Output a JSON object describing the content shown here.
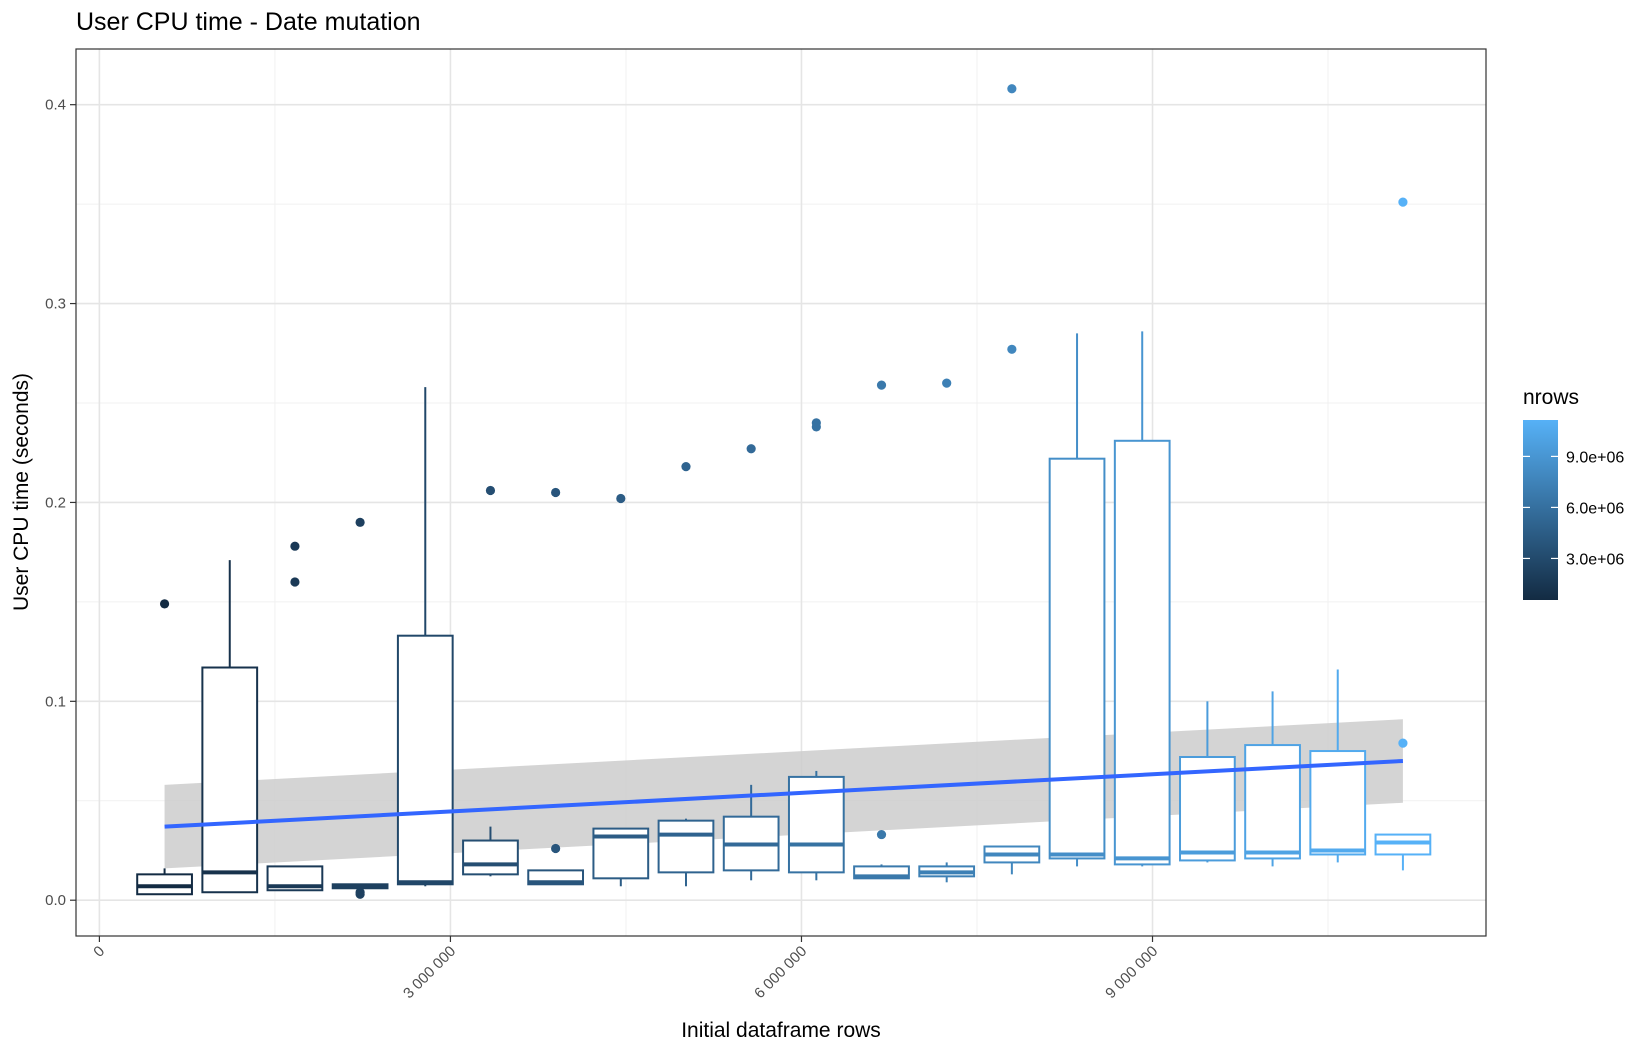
{
  "chart_data": {
    "type": "boxplot",
    "title": "User CPU time - Date mutation",
    "xlabel": "Initial dataframe rows",
    "ylabel": "User CPU time (seconds)",
    "xlim": [
      -200000,
      11850000
    ],
    "ylim": [
      -0.018,
      0.428
    ],
    "x_ticks": [
      {
        "value": 0,
        "label": "0"
      },
      {
        "value": 3000000,
        "label": "3 000 000"
      },
      {
        "value": 6000000,
        "label": "6 000 000"
      },
      {
        "value": 9000000,
        "label": "9 000 000"
      }
    ],
    "y_ticks": [
      {
        "value": 0.0,
        "label": "0.0"
      },
      {
        "value": 0.1,
        "label": "0.1"
      },
      {
        "value": 0.2,
        "label": "0.2"
      },
      {
        "value": 0.3,
        "label": "0.3"
      },
      {
        "value": 0.4,
        "label": "0.4"
      }
    ],
    "grid": true,
    "legend": {
      "title": "nrows",
      "position": "right",
      "low_color": "#132B43",
      "high_color": "#56B1F7",
      "range": [
        557000,
        11140000
      ],
      "ticks": [
        {
          "value": 3000000,
          "label": "3.0e+06"
        },
        {
          "value": 6000000,
          "label": "6.0e+06"
        },
        {
          "value": 9000000,
          "label": "9.0e+06"
        }
      ]
    },
    "boxes": [
      {
        "x": 557000,
        "min": 0.003,
        "q1": 0.003,
        "median": 0.007,
        "q3": 0.013,
        "max": 0.016,
        "outliers": [
          0.149
        ]
      },
      {
        "x": 1114000,
        "min": 0.004,
        "q1": 0.004,
        "median": 0.014,
        "q3": 0.117,
        "max": 0.171,
        "outliers": []
      },
      {
        "x": 1671000,
        "min": 0.005,
        "q1": 0.005,
        "median": 0.007,
        "q3": 0.017,
        "max": 0.017,
        "outliers": [
          0.16,
          0.178
        ]
      },
      {
        "x": 2228000,
        "min": 0.006,
        "q1": 0.006,
        "median": 0.007,
        "q3": 0.008,
        "max": 0.008,
        "outliers": [
          0.003,
          0.004,
          0.19
        ]
      },
      {
        "x": 2785000,
        "min": 0.007,
        "q1": 0.008,
        "median": 0.009,
        "q3": 0.133,
        "max": 0.258,
        "outliers": []
      },
      {
        "x": 3342000,
        "min": 0.012,
        "q1": 0.013,
        "median": 0.018,
        "q3": 0.03,
        "max": 0.037,
        "outliers": [
          0.206
        ]
      },
      {
        "x": 3899000,
        "min": 0.008,
        "q1": 0.008,
        "median": 0.009,
        "q3": 0.015,
        "max": 0.015,
        "outliers": [
          0.026,
          0.205
        ]
      },
      {
        "x": 4456000,
        "min": 0.007,
        "q1": 0.011,
        "median": 0.032,
        "q3": 0.036,
        "max": 0.036,
        "outliers": [
          0.202
        ]
      },
      {
        "x": 5013000,
        "min": 0.007,
        "q1": 0.014,
        "median": 0.033,
        "q3": 0.04,
        "max": 0.041,
        "outliers": [
          0.218
        ]
      },
      {
        "x": 5570000,
        "min": 0.01,
        "q1": 0.015,
        "median": 0.028,
        "q3": 0.042,
        "max": 0.058,
        "outliers": [
          0.227
        ]
      },
      {
        "x": 6127000,
        "min": 0.01,
        "q1": 0.014,
        "median": 0.028,
        "q3": 0.062,
        "max": 0.065,
        "outliers": [
          0.238,
          0.24
        ]
      },
      {
        "x": 6684000,
        "min": 0.011,
        "q1": 0.011,
        "median": 0.012,
        "q3": 0.017,
        "max": 0.018,
        "outliers": [
          0.033,
          0.259
        ]
      },
      {
        "x": 7241000,
        "min": 0.009,
        "q1": 0.012,
        "median": 0.014,
        "q3": 0.017,
        "max": 0.019,
        "outliers": [
          0.26
        ]
      },
      {
        "x": 7798000,
        "min": 0.013,
        "q1": 0.019,
        "median": 0.023,
        "q3": 0.027,
        "max": 0.027,
        "outliers": [
          0.277,
          0.408
        ]
      },
      {
        "x": 8355000,
        "min": 0.017,
        "q1": 0.021,
        "median": 0.023,
        "q3": 0.222,
        "max": 0.285,
        "outliers": []
      },
      {
        "x": 8912000,
        "min": 0.017,
        "q1": 0.018,
        "median": 0.021,
        "q3": 0.231,
        "max": 0.286,
        "outliers": []
      },
      {
        "x": 9469000,
        "min": 0.019,
        "q1": 0.02,
        "median": 0.024,
        "q3": 0.072,
        "max": 0.1,
        "outliers": []
      },
      {
        "x": 10026000,
        "min": 0.017,
        "q1": 0.021,
        "median": 0.024,
        "q3": 0.078,
        "max": 0.105,
        "outliers": []
      },
      {
        "x": 10583000,
        "min": 0.019,
        "q1": 0.023,
        "median": 0.025,
        "q3": 0.075,
        "max": 0.116,
        "outliers": []
      },
      {
        "x": 11140000,
        "min": 0.015,
        "q1": 0.023,
        "median": 0.029,
        "q3": 0.033,
        "max": 0.033,
        "outliers": [
          0.079,
          0.351
        ]
      }
    ],
    "trend": {
      "method": "linear",
      "color": "#3366FF",
      "band_color": "#cccccc",
      "x": [
        557000,
        11140000
      ],
      "y": [
        0.037,
        0.07
      ],
      "ci_lower": [
        0.016,
        0.049
      ],
      "ci_upper": [
        0.058,
        0.091
      ]
    }
  }
}
